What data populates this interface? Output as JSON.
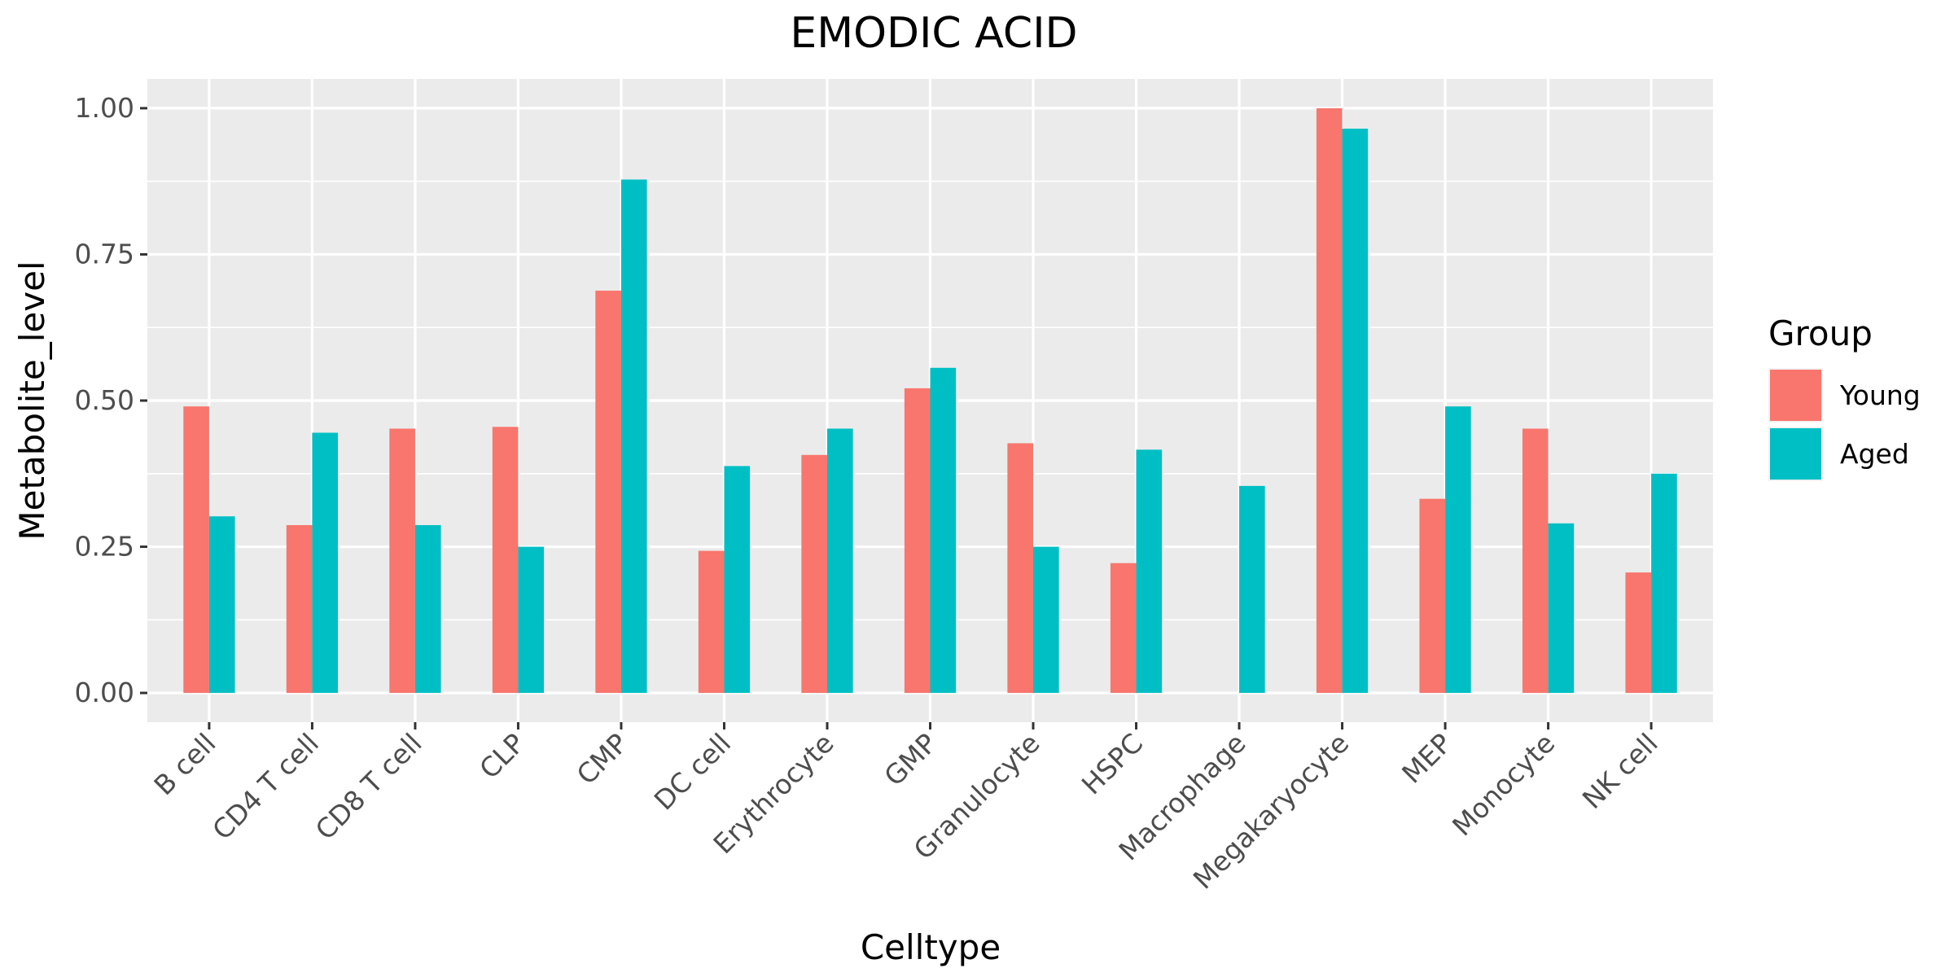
{
  "chart_data": {
    "type": "bar",
    "title": "EMODIC ACID",
    "xlabel": "Celltype",
    "ylabel": "Metabolite_level",
    "ylim": [
      -0.05,
      1.05
    ],
    "yticks": [
      0,
      0.25,
      0.5,
      0.75,
      1
    ],
    "ytick_labels": [
      "0.00",
      "0.25",
      "0.50",
      "0.75",
      "1.00"
    ],
    "grid": true,
    "categories": [
      "B cell",
      "CD4 T cell",
      "CD8 T cell",
      "CLP",
      "CMP",
      "DC cell",
      "Erythrocyte",
      "GMP",
      "Granulocyte",
      "HSPC",
      "Macrophage",
      "Megakaryocyte",
      "MEP",
      "Monocyte",
      "NK cell"
    ],
    "series": [
      {
        "name": "Young",
        "color": "#F8766D",
        "values": [
          0.49,
          0.287,
          0.452,
          0.455,
          0.688,
          0.243,
          0.407,
          0.521,
          0.427,
          0.222,
          null,
          1.0,
          0.332,
          0.452,
          0.206
        ]
      },
      {
        "name": "Aged",
        "color": "#00BFC4",
        "values": [
          0.302,
          0.445,
          0.287,
          0.25,
          0.878,
          0.388,
          0.452,
          0.556,
          0.25,
          0.416,
          0.354,
          0.965,
          0.49,
          0.29,
          0.375
        ]
      }
    ],
    "legend": {
      "title": "Group",
      "position": "right"
    }
  }
}
